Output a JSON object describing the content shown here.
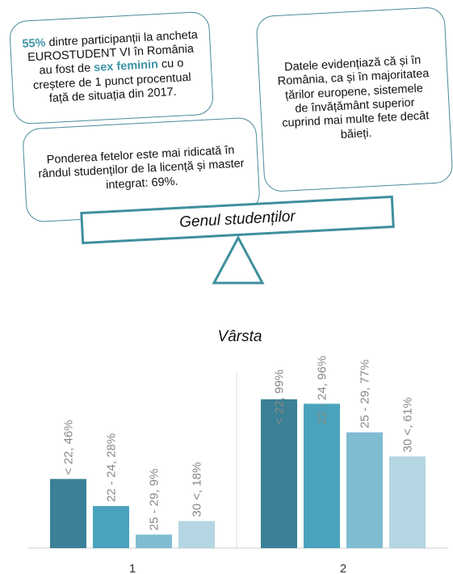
{
  "boxes": [
    {
      "segments": [
        {
          "text": "55%",
          "emphasis": true
        },
        {
          "text": " dintre participanții la ancheta EUROSTUDENT VI în România au fost de ",
          "emphasis": false
        },
        {
          "text": "sex feminin",
          "emphasis": true
        },
        {
          "text": " cu o creștere de 1 punct procentual față de situația din 2017.",
          "emphasis": false
        }
      ]
    },
    {
      "segments": [
        {
          "text": "Ponderea fetelor este mai ridicată în rândul studenților de la licență și master integrat: 69%.",
          "emphasis": false
        }
      ]
    },
    {
      "segments": [
        {
          "text": "Datele evidențiază că și în România, ca și în majoritatea țărilor europene, sistemele de învățământ superior cuprind mai multe fete decât băieți.",
          "emphasis": false
        }
      ]
    }
  ],
  "seesaw_label": "Genul studenților",
  "chart_data": {
    "type": "bar",
    "title": "Vârsta",
    "categories": [
      "1",
      "2"
    ],
    "ylim": [
      0,
      100
    ],
    "series": [
      {
        "name": "< 22",
        "color": "#3a8096",
        "values": [
          46,
          99
        ],
        "value_labels": [
          "< 22, 46%",
          "< 22, 99%"
        ]
      },
      {
        "name": "22 - 24",
        "color": "#4aa3bc",
        "values": [
          28,
          96
        ],
        "value_labels": [
          "22 - 24, 28%",
          "22 - 24, 96%"
        ]
      },
      {
        "name": "25 - 29",
        "color": "#7fbcd2",
        "values": [
          9,
          77
        ],
        "value_labels": [
          "25 - 29, 9%",
          "25 - 29, 77%"
        ]
      },
      {
        "name": "30 <",
        "color": "#b4d6e2",
        "values": [
          18,
          61
        ],
        "value_labels": [
          "30 <, 18%",
          "30 <, 61%"
        ]
      }
    ]
  }
}
